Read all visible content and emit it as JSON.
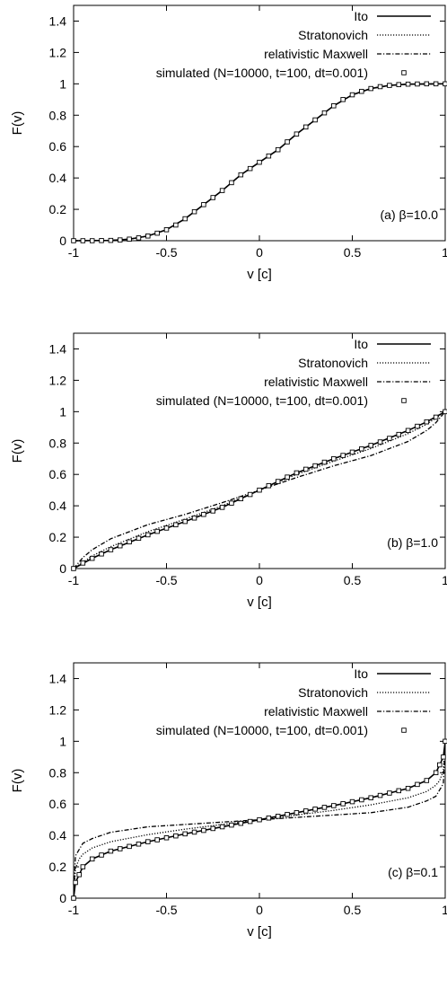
{
  "chart_data": [
    {
      "type": "line",
      "panel_label": "(a)  β=10.0",
      "beta": 10.0,
      "xlabel": "v [c]",
      "ylabel": "F(v)",
      "xlim": [
        -1,
        1
      ],
      "ylim": [
        0,
        1.5
      ],
      "xticks": [
        "-1",
        "-0.5",
        "0",
        "0.5",
        "1"
      ],
      "yticks": [
        "0",
        "0.2",
        "0.4",
        "0.6",
        "0.8",
        "1",
        "1.2",
        "1.4"
      ],
      "legend_position": "top-right",
      "series": [
        {
          "name": "Ito",
          "style": "solid",
          "x": [
            -1.0,
            -0.8,
            -0.7,
            -0.6,
            -0.5,
            -0.4,
            -0.3,
            -0.2,
            -0.1,
            0.0,
            0.1,
            0.2,
            0.3,
            0.4,
            0.5,
            0.6,
            0.7,
            0.8,
            1.0
          ],
          "y": [
            0.0,
            0.002,
            0.01,
            0.03,
            0.07,
            0.14,
            0.23,
            0.32,
            0.42,
            0.5,
            0.58,
            0.68,
            0.77,
            0.86,
            0.93,
            0.97,
            0.99,
            0.998,
            1.0
          ]
        },
        {
          "name": "Stratonovich",
          "style": "dotted",
          "x": [
            -1.0,
            -0.8,
            -0.7,
            -0.6,
            -0.5,
            -0.4,
            -0.3,
            -0.2,
            -0.1,
            0.0,
            0.1,
            0.2,
            0.3,
            0.4,
            0.5,
            0.6,
            0.7,
            0.8,
            1.0
          ],
          "y": [
            0.0,
            0.002,
            0.01,
            0.03,
            0.07,
            0.14,
            0.23,
            0.32,
            0.42,
            0.5,
            0.58,
            0.68,
            0.77,
            0.86,
            0.93,
            0.97,
            0.99,
            0.998,
            1.0
          ]
        },
        {
          "name": "relativistic Maxwell",
          "style": "dashdot",
          "x": [
            -1.0,
            -0.8,
            -0.7,
            -0.6,
            -0.5,
            -0.4,
            -0.3,
            -0.2,
            -0.1,
            0.0,
            0.1,
            0.2,
            0.3,
            0.4,
            0.5,
            0.6,
            0.7,
            0.8,
            1.0
          ],
          "y": [
            0.0,
            0.002,
            0.01,
            0.03,
            0.07,
            0.14,
            0.23,
            0.32,
            0.42,
            0.5,
            0.58,
            0.68,
            0.77,
            0.86,
            0.93,
            0.97,
            0.99,
            0.998,
            1.0
          ]
        },
        {
          "name": "simulated (N=10000, t=100, dt=0.001)",
          "style": "markers",
          "x": [
            -1.0,
            -0.95,
            -0.9,
            -0.85,
            -0.8,
            -0.75,
            -0.7,
            -0.65,
            -0.6,
            -0.55,
            -0.5,
            -0.45,
            -0.4,
            -0.35,
            -0.3,
            -0.25,
            -0.2,
            -0.15,
            -0.1,
            -0.05,
            0.0,
            0.05,
            0.1,
            0.15,
            0.2,
            0.25,
            0.3,
            0.35,
            0.4,
            0.45,
            0.5,
            0.55,
            0.6,
            0.65,
            0.7,
            0.75,
            0.8,
            0.85,
            0.9,
            0.95,
            1.0
          ],
          "y": [
            0.0,
            0.0,
            0.0,
            0.001,
            0.002,
            0.005,
            0.01,
            0.018,
            0.03,
            0.048,
            0.07,
            0.1,
            0.14,
            0.185,
            0.23,
            0.275,
            0.32,
            0.37,
            0.42,
            0.46,
            0.5,
            0.54,
            0.58,
            0.63,
            0.68,
            0.725,
            0.77,
            0.815,
            0.86,
            0.9,
            0.93,
            0.952,
            0.97,
            0.982,
            0.99,
            0.995,
            0.998,
            0.999,
            1.0,
            1.0,
            1.0
          ]
        }
      ]
    },
    {
      "type": "line",
      "panel_label": "(b)  β=1.0",
      "beta": 1.0,
      "xlabel": "v [c]",
      "ylabel": "F(v)",
      "xlim": [
        -1,
        1
      ],
      "ylim": [
        0,
        1.5
      ],
      "xticks": [
        "-1",
        "-0.5",
        "0",
        "0.5",
        "1"
      ],
      "yticks": [
        "0",
        "0.2",
        "0.4",
        "0.6",
        "0.8",
        "1",
        "1.2",
        "1.4"
      ],
      "legend_position": "top-right",
      "series": [
        {
          "name": "Ito",
          "style": "solid",
          "x": [
            -1.0,
            -0.9,
            -0.8,
            -0.6,
            -0.4,
            -0.2,
            0.0,
            0.2,
            0.4,
            0.6,
            0.8,
            0.9,
            1.0
          ],
          "y": [
            0.0,
            0.065,
            0.12,
            0.215,
            0.3,
            0.39,
            0.5,
            0.61,
            0.7,
            0.785,
            0.88,
            0.935,
            1.0
          ]
        },
        {
          "name": "Stratonovich",
          "style": "dotted",
          "x": [
            -1.0,
            -0.9,
            -0.8,
            -0.6,
            -0.4,
            -0.2,
            0.0,
            0.2,
            0.4,
            0.6,
            0.8,
            0.9,
            1.0
          ],
          "y": [
            0.0,
            0.08,
            0.14,
            0.235,
            0.315,
            0.4,
            0.5,
            0.6,
            0.685,
            0.765,
            0.86,
            0.92,
            1.0
          ]
        },
        {
          "name": "relativistic Maxwell",
          "style": "dashdot",
          "x": [
            -1.0,
            -0.95,
            -0.9,
            -0.8,
            -0.6,
            -0.4,
            -0.2,
            0.0,
            0.2,
            0.4,
            0.6,
            0.8,
            0.9,
            0.95,
            1.0
          ],
          "y": [
            0.0,
            0.07,
            0.12,
            0.19,
            0.28,
            0.345,
            0.42,
            0.5,
            0.58,
            0.655,
            0.72,
            0.81,
            0.88,
            0.93,
            1.0
          ]
        },
        {
          "name": "simulated (N=10000, t=100, dt=0.001)",
          "style": "markers",
          "x": [
            -1.0,
            -0.95,
            -0.9,
            -0.85,
            -0.8,
            -0.75,
            -0.7,
            -0.65,
            -0.6,
            -0.55,
            -0.5,
            -0.45,
            -0.4,
            -0.35,
            -0.3,
            -0.25,
            -0.2,
            -0.15,
            -0.1,
            -0.05,
            0.0,
            0.05,
            0.1,
            0.15,
            0.2,
            0.25,
            0.3,
            0.35,
            0.4,
            0.45,
            0.5,
            0.55,
            0.6,
            0.65,
            0.7,
            0.75,
            0.8,
            0.85,
            0.9,
            0.95,
            1.0
          ],
          "y": [
            0.0,
            0.035,
            0.065,
            0.093,
            0.12,
            0.145,
            0.17,
            0.193,
            0.215,
            0.237,
            0.258,
            0.279,
            0.3,
            0.322,
            0.345,
            0.367,
            0.39,
            0.417,
            0.445,
            0.472,
            0.5,
            0.528,
            0.555,
            0.583,
            0.61,
            0.633,
            0.655,
            0.678,
            0.7,
            0.721,
            0.742,
            0.763,
            0.785,
            0.807,
            0.83,
            0.855,
            0.88,
            0.907,
            0.935,
            0.965,
            1.0
          ]
        }
      ]
    },
    {
      "type": "line",
      "panel_label": "(c)  β=0.1",
      "beta": 0.1,
      "xlabel": "v [c]",
      "ylabel": "F(v)",
      "xlim": [
        -1,
        1
      ],
      "ylim": [
        0,
        1.5
      ],
      "xticks": [
        "-1",
        "-0.5",
        "0",
        "0.5",
        "1"
      ],
      "yticks": [
        "0",
        "0.2",
        "0.4",
        "0.6",
        "0.8",
        "1",
        "1.2",
        "1.4"
      ],
      "legend_position": "top-right",
      "series": [
        {
          "name": "Ito",
          "style": "solid",
          "x": [
            -1.0,
            -0.99,
            -0.97,
            -0.95,
            -0.9,
            -0.8,
            -0.6,
            -0.4,
            -0.2,
            0.0,
            0.2,
            0.4,
            0.6,
            0.8,
            0.9,
            0.95,
            0.97,
            0.99,
            1.0
          ],
          "y": [
            0.0,
            0.1,
            0.15,
            0.2,
            0.25,
            0.3,
            0.36,
            0.41,
            0.455,
            0.5,
            0.545,
            0.59,
            0.64,
            0.7,
            0.75,
            0.8,
            0.85,
            0.9,
            1.0
          ]
        },
        {
          "name": "Stratonovich",
          "style": "dotted",
          "x": [
            -1.0,
            -0.99,
            -0.97,
            -0.95,
            -0.9,
            -0.8,
            -0.6,
            -0.4,
            -0.2,
            0.0,
            0.2,
            0.4,
            0.6,
            0.8,
            0.9,
            0.95,
            0.97,
            0.99,
            1.0
          ],
          "y": [
            0.0,
            0.19,
            0.25,
            0.28,
            0.32,
            0.36,
            0.405,
            0.44,
            0.47,
            0.5,
            0.53,
            0.56,
            0.595,
            0.64,
            0.68,
            0.72,
            0.75,
            0.81,
            1.0
          ]
        },
        {
          "name": "relativistic Maxwell",
          "style": "dashdot",
          "x": [
            -1.0,
            -0.99,
            -0.97,
            -0.95,
            -0.9,
            -0.8,
            -0.6,
            -0.4,
            -0.2,
            0.0,
            0.2,
            0.4,
            0.6,
            0.8,
            0.9,
            0.95,
            0.97,
            0.99,
            1.0
          ],
          "y": [
            0.0,
            0.27,
            0.31,
            0.35,
            0.38,
            0.42,
            0.455,
            0.47,
            0.485,
            0.5,
            0.515,
            0.53,
            0.545,
            0.58,
            0.62,
            0.65,
            0.69,
            0.73,
            1.0
          ]
        },
        {
          "name": "simulated (N=10000, t=100, dt=0.001)",
          "style": "markers",
          "x": [
            -1.0,
            -0.99,
            -0.97,
            -0.95,
            -0.9,
            -0.85,
            -0.8,
            -0.75,
            -0.7,
            -0.65,
            -0.6,
            -0.55,
            -0.5,
            -0.45,
            -0.4,
            -0.35,
            -0.3,
            -0.25,
            -0.2,
            -0.15,
            -0.1,
            -0.05,
            0.0,
            0.05,
            0.1,
            0.15,
            0.2,
            0.25,
            0.3,
            0.35,
            0.4,
            0.45,
            0.5,
            0.55,
            0.6,
            0.65,
            0.7,
            0.75,
            0.8,
            0.85,
            0.9,
            0.95,
            0.97,
            0.99,
            1.0
          ],
          "y": [
            0.0,
            0.1,
            0.15,
            0.2,
            0.25,
            0.275,
            0.3,
            0.315,
            0.33,
            0.345,
            0.36,
            0.372,
            0.385,
            0.397,
            0.41,
            0.421,
            0.432,
            0.444,
            0.455,
            0.466,
            0.477,
            0.489,
            0.5,
            0.511,
            0.522,
            0.534,
            0.545,
            0.556,
            0.568,
            0.579,
            0.59,
            0.602,
            0.615,
            0.627,
            0.64,
            0.655,
            0.67,
            0.685,
            0.7,
            0.725,
            0.75,
            0.8,
            0.85,
            0.9,
            1.0
          ]
        }
      ]
    }
  ]
}
